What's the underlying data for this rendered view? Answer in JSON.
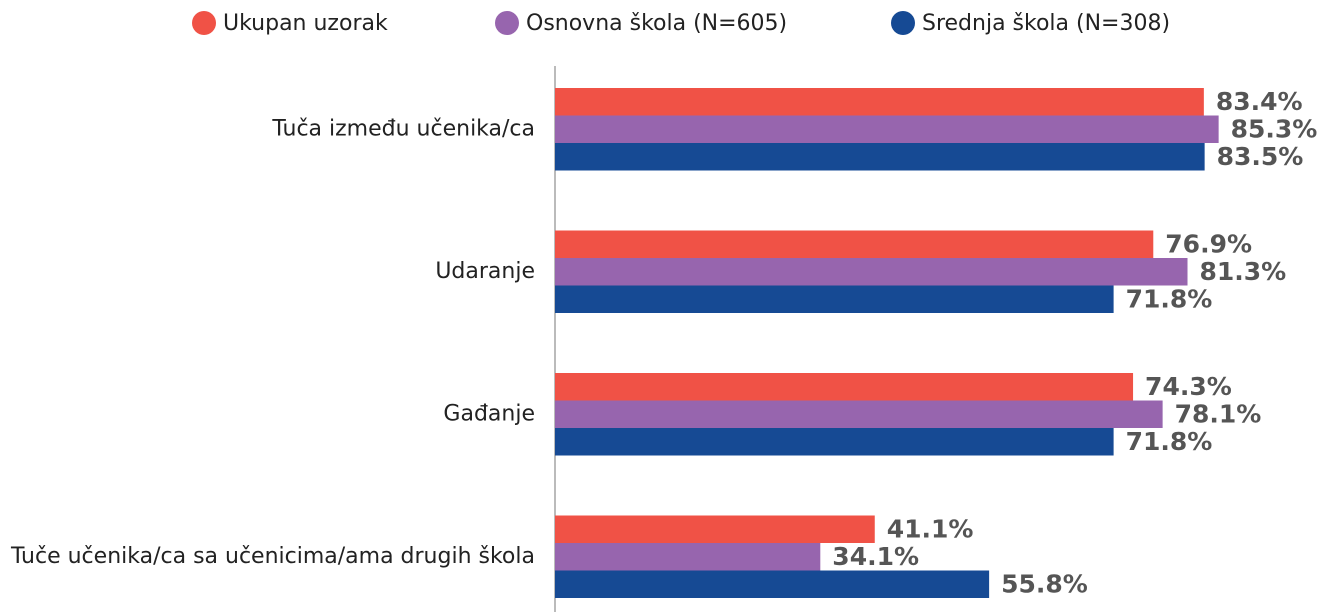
{
  "chart_data": {
    "type": "bar",
    "orientation": "horizontal",
    "categories": [
      "Tuča između učenika/ca",
      "Udaranje",
      "Gađanje",
      "Tuče učenika/ca sa učenicima/ama drugih škola"
    ],
    "series": [
      {
        "name": "Ukupan uzorak",
        "color": "#f05246",
        "values": [
          83.4,
          76.9,
          74.3,
          41.1
        ],
        "value_labels": [
          "83.4%",
          "76.9%",
          "74.3%",
          "41.1%"
        ]
      },
      {
        "name": "Osnovna škola (N=605)",
        "color": "#9765ae",
        "values": [
          85.3,
          81.3,
          78.1,
          34.1
        ],
        "value_labels": [
          "85.3%",
          "81.3%",
          "78.1%",
          "34.1%"
        ]
      },
      {
        "name": "Srednja škola (N=308)",
        "color": "#164a94",
        "values": [
          83.5,
          71.8,
          71.8,
          55.8
        ],
        "value_labels": [
          "83.5%",
          "71.8%",
          "71.8%",
          "55.8%"
        ]
      }
    ],
    "xlim": [
      0,
      100
    ],
    "legend": "top"
  }
}
